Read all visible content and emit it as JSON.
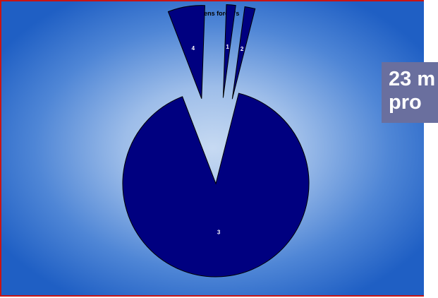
{
  "chart_data": {
    "type": "pie",
    "title": "Swedens forest's",
    "categories": [
      "1",
      "2",
      "3",
      "4"
    ],
    "values": [
      1.6,
      1.8,
      90.2,
      6.4
    ],
    "exploded": true,
    "colors": {
      "slice": "#000080",
      "stroke": "#000000",
      "label": "#ffffff"
    }
  },
  "callout": {
    "line1": "23 m",
    "line2": "pro"
  }
}
